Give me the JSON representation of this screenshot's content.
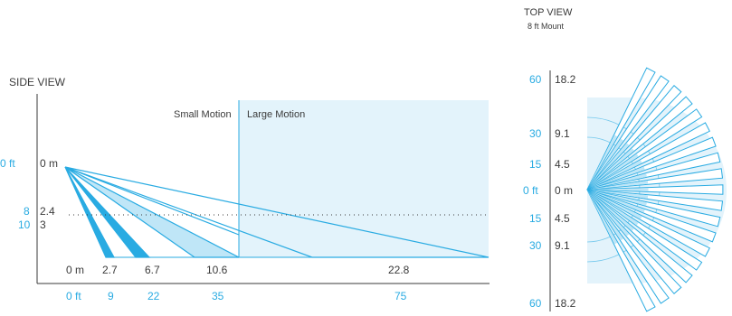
{
  "colors": {
    "accent": "#29abe2",
    "text": "#3a3a3a",
    "large_zone_fill": "#e3f3fb",
    "pattern_fill": "#bfe6f7",
    "pattern_fill_dark": "#29abe2"
  },
  "side_view": {
    "title": "SIDE VIEW",
    "zone_small": "Small Motion",
    "zone_large": "Large Motion",
    "height_ft": [
      "0 ft",
      "8",
      "10"
    ],
    "height_m": [
      "0 m",
      "2.4",
      "3"
    ],
    "range_m": [
      "0 m",
      "2.7",
      "6.7",
      "10.6",
      "22.8"
    ],
    "range_ft": [
      "0 ft",
      "9",
      "22",
      "35",
      "75"
    ]
  },
  "top_view": {
    "title": "TOP VIEW",
    "subtitle": "8 ft Mount",
    "ft_labels": [
      "60",
      "30",
      "15",
      "0 ft",
      "15",
      "30",
      "60"
    ],
    "m_labels": [
      "18.2",
      "9.1",
      "4.5",
      "0 m",
      "4.5",
      "9.1",
      "18.2"
    ]
  }
}
